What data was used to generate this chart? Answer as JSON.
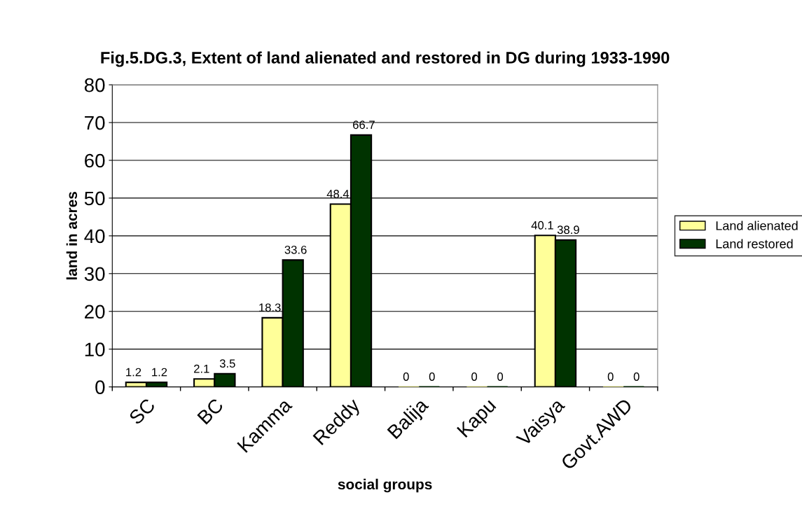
{
  "chart_data": {
    "type": "bar",
    "title": "Fig.5.DG.3, Extent of land alienated and restored in DG during 1933-1990",
    "xlabel": "social groups",
    "ylabel": "land in acres",
    "categories": [
      "SC",
      "BC",
      "Kamma",
      "Reddy",
      "Balija",
      "Kapu",
      "Vaisya",
      "Govt.AWD"
    ],
    "series": [
      {
        "name": "Land alienated",
        "color": "#ffff99",
        "values": [
          1.2,
          2.1,
          18.3,
          48.4,
          0,
          0,
          40.1,
          0
        ]
      },
      {
        "name": "Land restored",
        "color": "#003300",
        "values": [
          1.2,
          3.5,
          33.6,
          66.7,
          0,
          0,
          38.9,
          0
        ]
      }
    ],
    "ylim": [
      0,
      80
    ],
    "yticks": [
      0,
      10,
      20,
      30,
      40,
      50,
      60,
      70,
      80
    ],
    "grid": "y",
    "legend": "right",
    "data_labels": true
  }
}
